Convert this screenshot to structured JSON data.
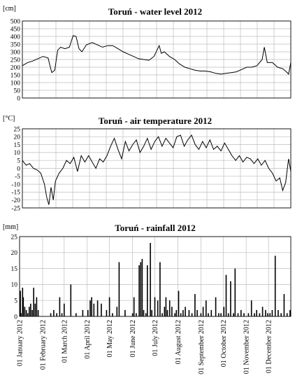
{
  "chart_data": [
    {
      "type": "line",
      "title": "Toruń  - water level  2012",
      "ylabel": "[cm]",
      "ylim": [
        0,
        500
      ],
      "yticks": [
        0,
        50,
        100,
        150,
        200,
        250,
        300,
        350,
        400,
        450,
        500
      ],
      "xlim": [
        "2012-01-01",
        "2012-12-31"
      ],
      "grid": true,
      "series": [
        {
          "x": [
            "2012-01-01",
            "2012-01-08",
            "2012-01-15",
            "2012-01-22",
            "2012-01-29",
            "2012-02-05",
            "2012-02-08",
            "2012-02-10",
            "2012-02-14",
            "2012-02-18",
            "2012-02-22",
            "2012-02-28",
            "2012-03-05",
            "2012-03-10",
            "2012-03-14",
            "2012-03-18",
            "2012-03-22",
            "2012-03-28",
            "2012-04-05",
            "2012-04-12",
            "2012-04-19",
            "2012-04-26",
            "2012-05-03",
            "2012-05-10",
            "2012-05-17",
            "2012-05-24",
            "2012-05-31",
            "2012-06-07",
            "2012-06-14",
            "2012-06-21",
            "2012-06-28",
            "2012-07-02",
            "2012-07-05",
            "2012-07-08",
            "2012-07-12",
            "2012-07-19",
            "2012-07-26",
            "2012-08-02",
            "2012-08-09",
            "2012-08-16",
            "2012-08-23",
            "2012-08-30",
            "2012-09-06",
            "2012-09-13",
            "2012-09-20",
            "2012-09-27",
            "2012-10-04",
            "2012-10-11",
            "2012-10-18",
            "2012-10-25",
            "2012-11-01",
            "2012-11-08",
            "2012-11-15",
            "2012-11-22",
            "2012-11-25",
            "2012-11-29",
            "2012-12-06",
            "2012-12-13",
            "2012-12-20",
            "2012-12-24",
            "2012-12-28",
            "2012-12-31"
          ],
          "values": [
            210,
            230,
            240,
            255,
            270,
            260,
            200,
            165,
            180,
            310,
            330,
            320,
            330,
            405,
            400,
            320,
            300,
            345,
            360,
            345,
            330,
            340,
            340,
            320,
            300,
            285,
            270,
            255,
            250,
            245,
            270,
            310,
            340,
            290,
            300,
            270,
            250,
            220,
            200,
            190,
            180,
            175,
            175,
            170,
            160,
            155,
            160,
            165,
            170,
            185,
            200,
            200,
            210,
            250,
            330,
            230,
            230,
            200,
            190,
            175,
            155,
            230
          ]
        }
      ]
    },
    {
      "type": "line",
      "title": "Toruń  - air temperature  2012",
      "ylabel": "[°C]",
      "ylim": [
        -25,
        25
      ],
      "yticks": [
        -25,
        -20,
        -15,
        -10,
        -5,
        0,
        5,
        10,
        15,
        20,
        25
      ],
      "xlim": [
        "2012-01-01",
        "2012-12-31"
      ],
      "grid": true,
      "series": [
        {
          "x": [
            "2012-01-01",
            "2012-01-06",
            "2012-01-11",
            "2012-01-16",
            "2012-01-21",
            "2012-01-26",
            "2012-01-31",
            "2012-02-03",
            "2012-02-06",
            "2012-02-09",
            "2012-02-12",
            "2012-02-15",
            "2012-02-20",
            "2012-02-25",
            "2012-03-01",
            "2012-03-06",
            "2012-03-11",
            "2012-03-16",
            "2012-03-21",
            "2012-03-26",
            "2012-03-31",
            "2012-04-05",
            "2012-04-10",
            "2012-04-15",
            "2012-04-20",
            "2012-04-25",
            "2012-04-30",
            "2012-05-05",
            "2012-05-10",
            "2012-05-15",
            "2012-05-20",
            "2012-05-25",
            "2012-05-30",
            "2012-06-04",
            "2012-06-09",
            "2012-06-14",
            "2012-06-19",
            "2012-06-24",
            "2012-06-29",
            "2012-07-04",
            "2012-07-09",
            "2012-07-14",
            "2012-07-19",
            "2012-07-24",
            "2012-07-29",
            "2012-08-03",
            "2012-08-08",
            "2012-08-13",
            "2012-08-18",
            "2012-08-23",
            "2012-08-28",
            "2012-09-02",
            "2012-09-07",
            "2012-09-12",
            "2012-09-17",
            "2012-09-22",
            "2012-09-27",
            "2012-10-02",
            "2012-10-07",
            "2012-10-12",
            "2012-10-17",
            "2012-10-22",
            "2012-10-27",
            "2012-11-01",
            "2012-11-06",
            "2012-11-11",
            "2012-11-16",
            "2012-11-21",
            "2012-11-26",
            "2012-12-01",
            "2012-12-06",
            "2012-12-11",
            "2012-12-16",
            "2012-12-20",
            "2012-12-24",
            "2012-12-28",
            "2012-12-31"
          ],
          "values": [
            5,
            2,
            3,
            0,
            -1,
            -3,
            -10,
            -18,
            -23,
            -12,
            -20,
            -8,
            -3,
            0,
            5,
            3,
            7,
            -2,
            8,
            4,
            8,
            4,
            0,
            6,
            4,
            8,
            14,
            19,
            12,
            6,
            17,
            11,
            15,
            18,
            10,
            14,
            19,
            12,
            17,
            20,
            14,
            19,
            16,
            13,
            20,
            21,
            14,
            18,
            21,
            15,
            12,
            17,
            13,
            18,
            12,
            14,
            11,
            16,
            12,
            8,
            5,
            8,
            4,
            7,
            6,
            3,
            6,
            2,
            5,
            0,
            -3,
            -8,
            -6,
            -14,
            -9,
            6,
            -2
          ]
        }
      ]
    },
    {
      "type": "bar",
      "title": "Toruń  - rainfall  2012",
      "ylabel": "[mm]",
      "ylim": [
        0,
        25
      ],
      "yticks": [
        0,
        5,
        10,
        15,
        20,
        25
      ],
      "xlim": [
        "2012-01-01",
        "2012-12-31"
      ],
      "grid": true,
      "xtick_dates": [
        "2012-01-01",
        "2012-02-01",
        "2012-03-01",
        "2012-04-01",
        "2012-05-01",
        "2012-06-01",
        "2012-07-01",
        "2012-08-01",
        "2012-09-01",
        "2012-10-01",
        "2012-11-01",
        "2012-12-01"
      ],
      "xticklabels": [
        "01 January 2012",
        "01 February 2012",
        "01 March 2012",
        "01 April 2012",
        "01 May 2012",
        "01 June 2012",
        "01 July 2012",
        "01 August 2012",
        "01 September 2012",
        "01 October 2012",
        "01 November 2012",
        "01 December 2012"
      ],
      "series": [
        {
          "x": [
            "2012-01-02",
            "2012-01-03",
            "2012-01-05",
            "2012-01-06",
            "2012-01-08",
            "2012-01-10",
            "2012-01-12",
            "2012-01-14",
            "2012-01-16",
            "2012-01-18",
            "2012-01-20",
            "2012-01-22",
            "2012-01-24",
            "2012-01-26",
            "2012-02-12",
            "2012-02-16",
            "2012-02-20",
            "2012-02-24",
            "2012-02-27",
            "2012-03-01",
            "2012-03-10",
            "2012-03-17",
            "2012-03-26",
            "2012-04-02",
            "2012-04-05",
            "2012-04-07",
            "2012-04-10",
            "2012-04-15",
            "2012-04-20",
            "2012-04-27",
            "2012-05-01",
            "2012-05-05",
            "2012-05-11",
            "2012-05-14",
            "2012-05-22",
            "2012-06-01",
            "2012-06-03",
            "2012-06-06",
            "2012-06-10",
            "2012-06-12",
            "2012-06-14",
            "2012-06-16",
            "2012-06-19",
            "2012-06-21",
            "2012-06-25",
            "2012-06-27",
            "2012-07-01",
            "2012-07-05",
            "2012-07-08",
            "2012-07-11",
            "2012-07-14",
            "2012-07-16",
            "2012-07-18",
            "2012-07-21",
            "2012-07-24",
            "2012-07-28",
            "2012-07-30",
            "2012-08-02",
            "2012-08-05",
            "2012-08-08",
            "2012-08-11",
            "2012-08-16",
            "2012-08-20",
            "2012-08-24",
            "2012-08-27",
            "2012-09-01",
            "2012-09-04",
            "2012-09-08",
            "2012-09-11",
            "2012-09-15",
            "2012-09-21",
            "2012-09-25",
            "2012-09-28",
            "2012-10-02",
            "2012-10-05",
            "2012-10-08",
            "2012-10-11",
            "2012-10-15",
            "2012-10-17",
            "2012-10-21",
            "2012-10-25",
            "2012-10-29",
            "2012-11-04",
            "2012-11-08",
            "2012-11-12",
            "2012-11-15",
            "2012-11-19",
            "2012-11-23",
            "2012-11-27",
            "2012-11-30",
            "2012-12-03",
            "2012-12-06",
            "2012-12-10",
            "2012-12-14",
            "2012-12-18",
            "2012-12-22",
            "2012-12-26",
            "2012-12-30"
          ],
          "values": [
            8,
            1,
            9,
            6,
            3,
            2,
            1,
            3,
            4,
            2,
            9,
            4,
            6,
            2,
            1,
            2,
            1,
            6,
            1,
            4,
            10,
            1,
            2,
            2,
            5,
            6,
            4,
            5,
            4,
            2,
            6,
            1,
            3,
            17,
            2,
            1,
            6,
            1,
            16,
            17,
            18,
            2,
            1,
            16,
            23,
            2,
            6,
            5,
            17,
            1,
            3,
            6,
            2,
            5,
            3,
            1,
            2,
            8,
            1,
            2,
            3,
            2,
            1,
            7,
            2,
            1,
            3,
            5,
            1,
            2,
            6,
            1,
            1,
            3,
            13,
            1,
            11,
            1,
            15,
            1,
            2,
            1,
            1,
            5,
            1,
            2,
            1,
            3,
            2,
            1,
            1,
            2,
            19,
            2,
            1,
            7,
            1,
            2
          ]
        }
      ]
    }
  ]
}
